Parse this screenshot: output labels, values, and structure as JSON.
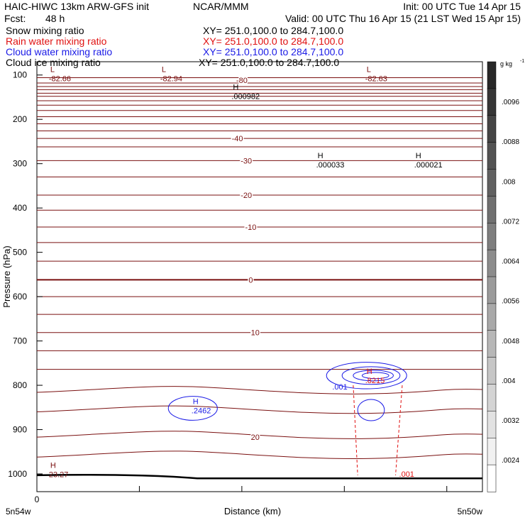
{
  "header": {
    "title": "HAIC-HIWC 13km ARW-GFS init",
    "org": "NCAR/MMM",
    "init": "Init: 00 UTC Tue 14 Apr 15",
    "fcst_label": "Fcst:",
    "fcst_value": "48 h",
    "valid": "Valid: 00 UTC Thu 16 Apr 15 (21 LST Wed 15 Apr 15)"
  },
  "fields": [
    {
      "name": "Snow mixing ratio",
      "xy": "XY= 251.0,100.0 to 284.7,100.0",
      "color": "#000000"
    },
    {
      "name": "Rain water mixing ratio",
      "xy": "XY= 251.0,100.0 to 284.7,100.0",
      "color": "#e01010"
    },
    {
      "name": "Cloud water mixing ratio",
      "xy": "XY= 251.0,100.0 to 284.7,100.0",
      "color": "#1a1ae6"
    },
    {
      "name": "Cloud ice mixing ratio",
      "xy": "XY= 251.0,100.0 to 284.7,100.0",
      "color": "#000000"
    }
  ],
  "colors": {
    "temperature": "#7a1010",
    "rain": "#e01010",
    "cloud_water": "#1a1ae6",
    "terrain": "#000000"
  },
  "chart_data": {
    "type": "contour cross-section",
    "ylabel": "Pressure (hPa)",
    "xlabel": "Distance (km)",
    "yticks": [
      100,
      200,
      300,
      400,
      500,
      600,
      700,
      800,
      900,
      1000
    ],
    "ylim": [
      1040,
      70
    ],
    "xtick_labels": [
      "0"
    ],
    "x_endpoint_labels": [
      "5n54w",
      "5n50w"
    ],
    "temperature_contour_labels": [
      {
        "label": "-80",
        "x": 0.46,
        "p": 112
      },
      {
        "label": "-40",
        "x": 0.45,
        "p": 243
      },
      {
        "label": "-30",
        "x": 0.47,
        "p": 293
      },
      {
        "label": "-20",
        "x": 0.47,
        "p": 371
      },
      {
        "label": "-10",
        "x": 0.48,
        "p": 443
      },
      {
        "label": "0",
        "x": 0.48,
        "p": 562
      },
      {
        "label": "10",
        "x": 0.49,
        "p": 681
      },
      {
        "label": "20",
        "x": 0.49,
        "p": 917
      }
    ],
    "extrema": [
      {
        "type": "L",
        "value": "-82.66",
        "x": 0.03,
        "p": 103,
        "color": "temperature"
      },
      {
        "type": "L",
        "value": "-82.94",
        "x": 0.28,
        "p": 103,
        "color": "temperature"
      },
      {
        "type": "L",
        "value": "-82.63",
        "x": 0.74,
        "p": 103,
        "color": "temperature"
      },
      {
        "type": "H",
        "value": ".000982",
        "x": 0.44,
        "p": 143,
        "color": "terrain"
      },
      {
        "type": "H",
        "value": ".000033",
        "x": 0.63,
        "p": 297,
        "color": "terrain"
      },
      {
        "type": "H",
        "value": ".000021",
        "x": 0.85,
        "p": 297,
        "color": "terrain"
      },
      {
        "type": "H",
        "value": ".2462",
        "x": 0.35,
        "p": 852,
        "color": "cloud_water"
      },
      {
        "type": "H",
        "value": ".8215",
        "x": 0.74,
        "p": 784,
        "color": "rain"
      },
      {
        "type": "H",
        "value": "23.27",
        "x": 0.03,
        "p": 996,
        "color": "temperature"
      }
    ],
    "cloud_water_contour_labels": [
      {
        "label": ".001",
        "x": 0.68,
        "p": 803
      }
    ],
    "rain_contour_labels": [
      {
        "label": ".001",
        "x": 0.83,
        "p": 1000
      }
    ],
    "colorbar": {
      "unit": "g kg",
      "unit_exponent": "-1",
      "levels": [
        ".0096",
        ".0088",
        ".008",
        ".0072",
        ".0064",
        ".0056",
        ".0048",
        ".004",
        ".0032",
        ".0024"
      ]
    }
  }
}
